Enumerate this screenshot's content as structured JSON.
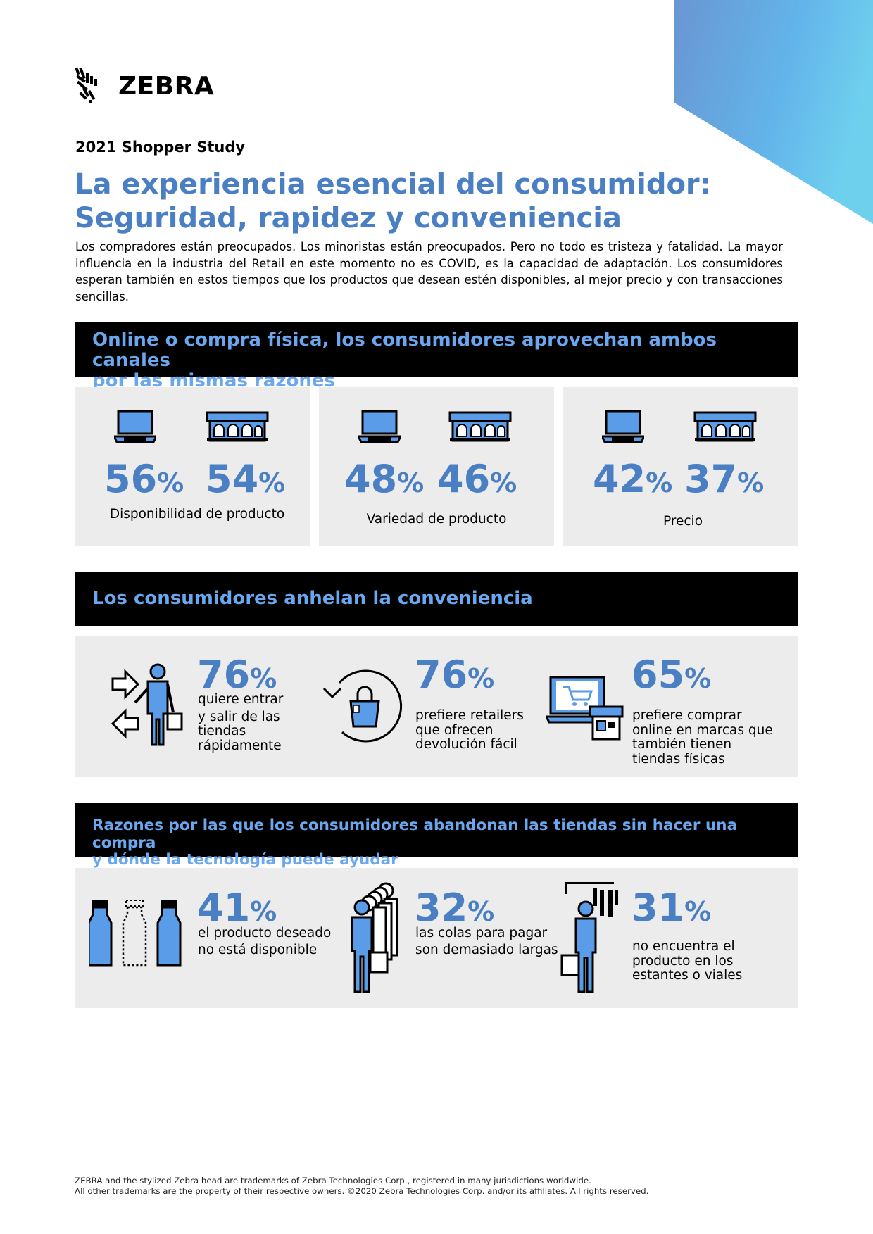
{
  "colors": {
    "accent": "#4a7fc3",
    "band_text": "#6aa7ef",
    "icon_fill": "#5a9ce8",
    "panel_bg": "#ececec"
  },
  "logo": {
    "brand": "ZEBRA"
  },
  "study_label": "2021 Shopper Study",
  "title": {
    "line1": "La experiencia esencial del consumidor:",
    "line2": "Seguridad, rapidez y conveniencia"
  },
  "intro": "Los compradores están preocupados. Los minoristas están preocupados. Pero no todo es tristeza y fatalidad. La mayor influencia en la industria del Retail en este momento no es COVID, es la capacidad de adaptación. Los consumidores esperan también en estos tiempos que los productos que desean estén disponibles, al mejor precio y con transacciones sencillas.",
  "section1": {
    "heading_line1": "Online o compra física, los consumidores aprovechan ambos canales",
    "heading_line2": "por las mismas razones",
    "cards": [
      {
        "online": "56",
        "store": "54",
        "pct": "%",
        "caption": "Disponibilidad de producto"
      },
      {
        "online": "48",
        "store": "46",
        "pct": "%",
        "caption": "Variedad de producto"
      },
      {
        "online": "42",
        "store": "37",
        "pct": "%",
        "caption": "Precio"
      }
    ]
  },
  "section2": {
    "heading": "Los consumidores anhelan la conveniencia",
    "stats": [
      {
        "value": "76",
        "pct": "%",
        "lines": [
          "quiere entrar",
          "y salir de las",
          "tiendas",
          "rápidamente"
        ]
      },
      {
        "value": "76",
        "pct": "%",
        "lines": [
          "prefiere retailers",
          "que ofrecen",
          "devolución fácil"
        ]
      },
      {
        "value": "65",
        "pct": "%",
        "lines": [
          "prefiere comprar",
          "online en marcas que",
          "también tienen",
          "tiendas físicas"
        ]
      }
    ]
  },
  "section3": {
    "heading_line1": "Razones por las que los consumidores abandonan las tiendas sin hacer una compra",
    "heading_line2": "y dónde la tecnología puede ayudar",
    "stats": [
      {
        "value": "41",
        "pct": "%",
        "lines": [
          "el producto deseado",
          "no está disponible"
        ]
      },
      {
        "value": "32",
        "pct": "%",
        "lines": [
          "las colas para pagar",
          "son demasiado largas"
        ]
      },
      {
        "value": "31",
        "pct": "%",
        "lines": [
          "no encuentra el",
          "producto en los",
          "estantes o viales"
        ]
      }
    ]
  },
  "legal": {
    "line1": "ZEBRA and the stylized Zebra head are trademarks of Zebra Technologies Corp., registered in many jurisdictions worldwide.",
    "line2": "All other trademarks are the property of their respective owners. ©2020 Zebra Technologies Corp. and/or its affiliates. All rights reserved."
  }
}
